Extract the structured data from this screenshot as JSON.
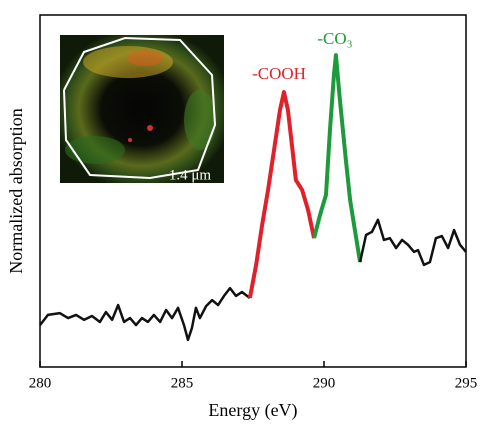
{
  "chart_data": {
    "type": "line",
    "x_label": "Energy (eV)",
    "y_label": "Normalized absorption",
    "xlim": [
      280,
      295
    ],
    "xticks": [
      280,
      285,
      290,
      295
    ],
    "ylim": [
      0,
      1
    ],
    "annotations": [
      {
        "text": "-COOH",
        "color": "#e0202a"
      },
      {
        "text": "-CO₃",
        "color": "#1e9a3c"
      }
    ],
    "inset_label": "1.4 μm",
    "series": [
      {
        "color": "#111111",
        "x": [
          280.0,
          280.28,
          280.7,
          280.99,
          281.27,
          281.55,
          281.83,
          282.11,
          282.32,
          282.54,
          282.75,
          282.96,
          283.17,
          283.38,
          283.59,
          283.8,
          284.01,
          284.23,
          284.44,
          284.65,
          284.86,
          285.07,
          285.21,
          285.35,
          285.49,
          285.63,
          285.85,
          286.06,
          286.27,
          286.48,
          286.69,
          286.9,
          287.11,
          287.39
        ],
        "values": [
          0.119,
          0.148,
          0.153,
          0.139,
          0.148,
          0.134,
          0.145,
          0.128,
          0.156,
          0.134,
          0.176,
          0.128,
          0.139,
          0.119,
          0.139,
          0.128,
          0.148,
          0.128,
          0.162,
          0.139,
          0.168,
          0.119,
          0.077,
          0.111,
          0.168,
          0.139,
          0.173,
          0.19,
          0.176,
          0.202,
          0.224,
          0.202,
          0.213,
          0.196
        ]
      },
      {
        "color": "#e0202a",
        "x": [
          287.39,
          287.61,
          287.82,
          288.03,
          288.24,
          288.45,
          288.59,
          288.73,
          288.87,
          289.01,
          289.23,
          289.44,
          289.65
        ],
        "values": [
          0.196,
          0.29,
          0.403,
          0.503,
          0.616,
          0.73,
          0.781,
          0.73,
          0.631,
          0.531,
          0.503,
          0.446,
          0.366
        ]
      },
      {
        "color": "#1e9a3c",
        "x": [
          289.65,
          289.86,
          290.07,
          290.21,
          290.35,
          290.42,
          290.56,
          290.77,
          290.92,
          291.06,
          291.27
        ],
        "values": [
          0.366,
          0.432,
          0.489,
          0.673,
          0.83,
          0.886,
          0.759,
          0.588,
          0.474,
          0.403,
          0.298
        ]
      },
      {
        "color": "#111111",
        "x": [
          291.27,
          291.48,
          291.69,
          291.9,
          292.11,
          292.32,
          292.54,
          292.75,
          292.96,
          293.17,
          293.31,
          293.52,
          293.73,
          293.94,
          294.15,
          294.37,
          294.58,
          294.79,
          295.0
        ],
        "values": [
          0.298,
          0.375,
          0.384,
          0.418,
          0.361,
          0.366,
          0.338,
          0.361,
          0.347,
          0.327,
          0.332,
          0.29,
          0.298,
          0.366,
          0.372,
          0.338,
          0.389,
          0.347,
          0.327
        ]
      }
    ]
  }
}
